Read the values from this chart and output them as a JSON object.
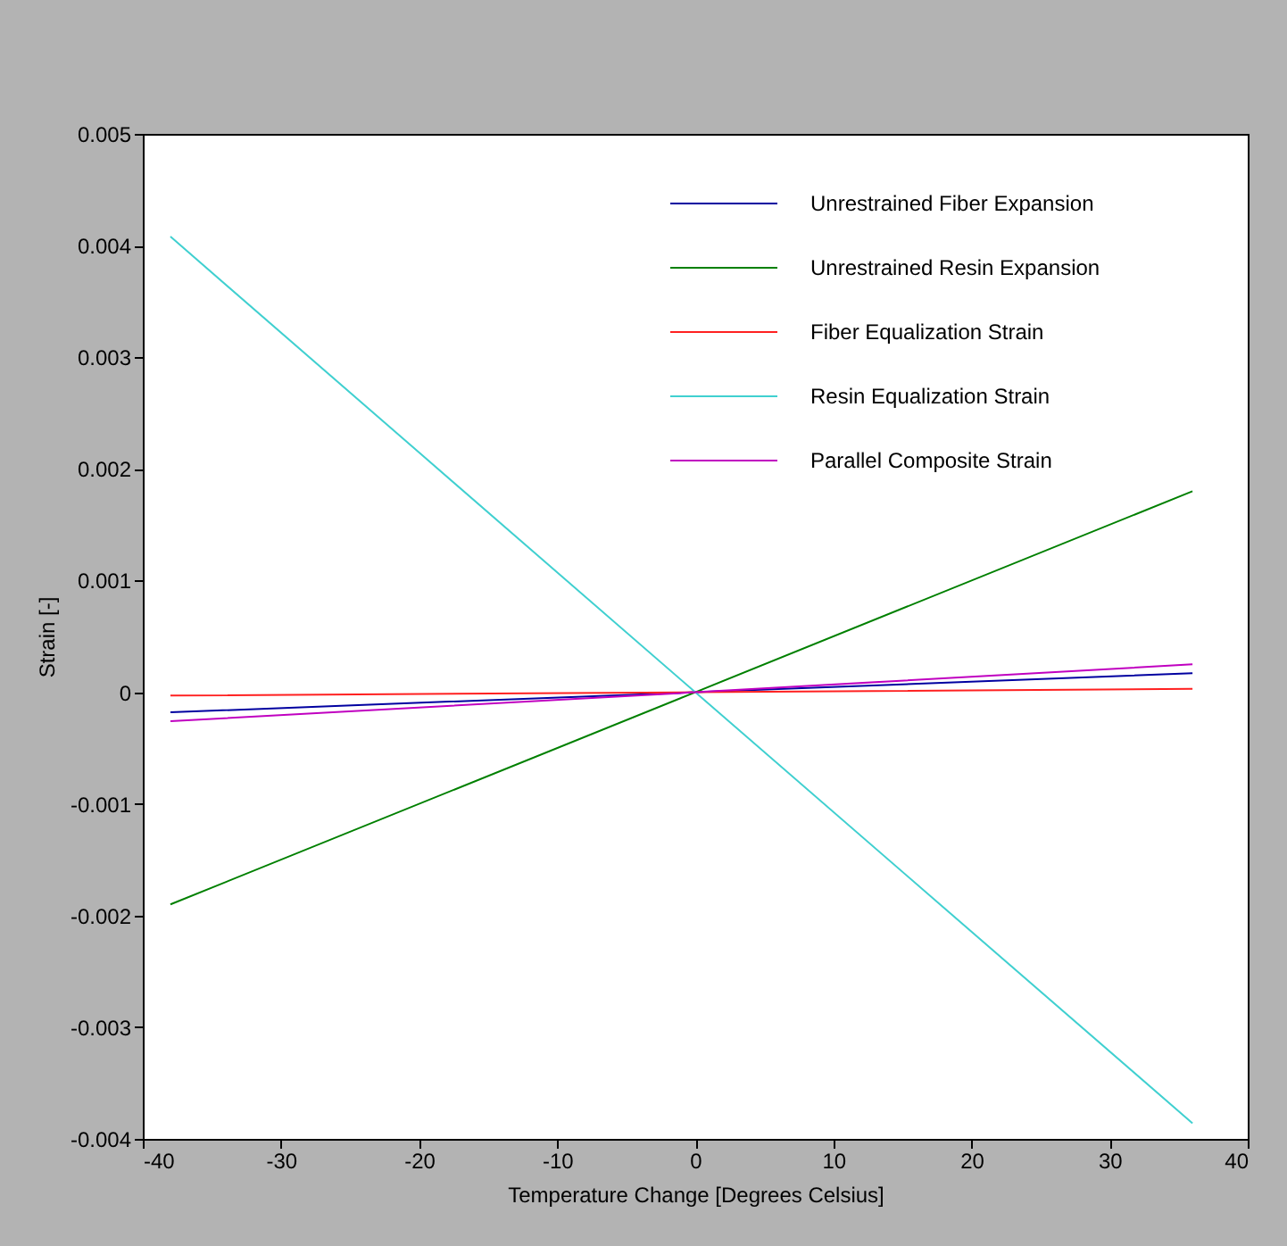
{
  "chart_data": {
    "type": "line",
    "xlabel": "Temperature Change [Degrees Celsius]",
    "ylabel": "Strain [-]",
    "xlim": [
      -40,
      40
    ],
    "xticks": [
      -40,
      -30,
      -20,
      -10,
      0,
      10,
      20,
      30,
      40
    ],
    "ylim": [
      -0.004,
      0.005
    ],
    "yticks": [
      -0.004,
      -0.003,
      -0.002,
      -0.001,
      0,
      0.001,
      0.002,
      0.003,
      0.004,
      0.005
    ],
    "grid": false,
    "legend": "top right",
    "marker": "none",
    "line_style": "solid",
    "series": [
      {
        "name": "Unrestrained Fiber Expansion",
        "color": "#0000a0",
        "x": [
          -38,
          0,
          36
        ],
        "values": [
          -0.00018,
          0,
          0.00017
        ]
      },
      {
        "name": "Unrestrained Resin Expansion",
        "color": "#008000",
        "x": [
          -38,
          0,
          36
        ],
        "values": [
          -0.0019,
          0,
          0.0018
        ]
      },
      {
        "name": "Fiber Equalization Strain",
        "color": "#ff2020",
        "x": [
          -38,
          0,
          36
        ],
        "values": [
          -3e-05,
          0,
          3e-05
        ]
      },
      {
        "name": "Resin Equalization Strain",
        "color": "#40d0d0",
        "x": [
          -38,
          0,
          36
        ],
        "values": [
          0.00408,
          0,
          -0.00386
        ]
      },
      {
        "name": "Parallel Composite Strain",
        "color": "#c000c0",
        "x": [
          -38,
          0,
          36
        ],
        "values": [
          -0.00026,
          0,
          0.00025
        ]
      }
    ]
  }
}
